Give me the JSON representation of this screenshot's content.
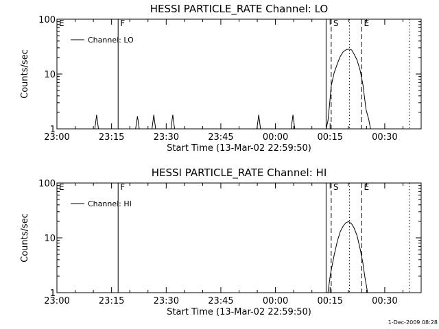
{
  "chart_data": [
    {
      "type": "line",
      "title": "HESSI PARTICLE_RATE Channel: LO",
      "xlabel": "Start Time (13-Mar-02 22:59:50)",
      "ylabel": "Counts/sec",
      "yscale": "log",
      "ylim": [
        1,
        100
      ],
      "y_ticks": [
        "1",
        "10",
        "100"
      ],
      "x_ticks": [
        "23:00",
        "23:15",
        "23:30",
        "23:45",
        "00:00",
        "00:15",
        "00:30"
      ],
      "legend": {
        "label": "Channel: LO",
        "placement": "top-left"
      },
      "markers": [
        {
          "label": "E",
          "x_minutes": 0,
          "style": "none"
        },
        {
          "label": "F",
          "x_minutes": 16.8,
          "style": "solid"
        },
        {
          "label": "",
          "x_minutes": 73.9,
          "style": "solid"
        },
        {
          "label": "S",
          "x_minutes": 75.3,
          "style": "dashed"
        },
        {
          "label": "",
          "x_minutes": 80.3,
          "style": "dotted"
        },
        {
          "label": "E",
          "x_minutes": 83.7,
          "style": "dashed"
        },
        {
          "label": "",
          "x_minutes": 96.8,
          "style": "dotted"
        }
      ],
      "series": [
        {
          "x_minutes": [
            0,
            10.4,
            10.9,
            11.4,
            21.6,
            22.1,
            22.6,
            26.1,
            26.6,
            27.1,
            31.3,
            31.8,
            32.3,
            54.9,
            55.4,
            55.9,
            64.3,
            64.8,
            65.3,
            73.9,
            74.4,
            74.9,
            75.3,
            76.1,
            77.0,
            77.8,
            78.6,
            79.3,
            80.1,
            80.9,
            81.6,
            82.4,
            83.2,
            84.0,
            84.5,
            84.9,
            85.6,
            86.1,
            100
          ],
          "values": [
            1,
            1,
            1.8,
            1,
            1,
            1.7,
            1,
            1,
            1.8,
            1,
            1,
            1.8,
            1,
            1,
            1.8,
            1,
            1,
            1.8,
            1,
            1,
            1.4,
            3.0,
            6.0,
            10.5,
            15.5,
            21.0,
            25.5,
            27.5,
            28.5,
            27.5,
            23.0,
            18.0,
            12.0,
            6.5,
            3.5,
            2.2,
            1.5,
            1,
            1
          ]
        }
      ]
    },
    {
      "type": "line",
      "title": "HESSI PARTICLE_RATE Channel: HI",
      "xlabel": "Start Time (13-Mar-02 22:59:50)",
      "ylabel": "Counts/sec",
      "yscale": "log",
      "ylim": [
        1,
        100
      ],
      "y_ticks": [
        "1",
        "10",
        "100"
      ],
      "x_ticks": [
        "23:00",
        "23:15",
        "23:30",
        "23:45",
        "00:00",
        "00:15",
        "00:30"
      ],
      "legend": {
        "label": "Channel: HI",
        "placement": "top-left"
      },
      "markers": [
        {
          "label": "E",
          "x_minutes": 0,
          "style": "none"
        },
        {
          "label": "F",
          "x_minutes": 16.8,
          "style": "solid"
        },
        {
          "label": "",
          "x_minutes": 73.9,
          "style": "solid"
        },
        {
          "label": "S",
          "x_minutes": 75.3,
          "style": "dashed"
        },
        {
          "label": "",
          "x_minutes": 80.3,
          "style": "dotted"
        },
        {
          "label": "E",
          "x_minutes": 83.7,
          "style": "dashed"
        },
        {
          "label": "",
          "x_minutes": 96.8,
          "style": "dotted"
        }
      ],
      "series": [
        {
          "x_minutes": [
            0,
            74.4,
            75.1,
            76.1,
            77.0,
            77.8,
            78.6,
            79.3,
            80.1,
            80.9,
            81.6,
            82.4,
            83.2,
            84.0,
            84.5,
            85.3,
            100
          ],
          "values": [
            1,
            1,
            2.2,
            4.8,
            8.8,
            13.0,
            16.5,
            18.8,
            19.8,
            18.0,
            15.0,
            11.0,
            6.5,
            3.5,
            2.0,
            1,
            1
          ]
        }
      ]
    }
  ],
  "footer": {
    "date": "1-Dec-2009 08:28"
  }
}
